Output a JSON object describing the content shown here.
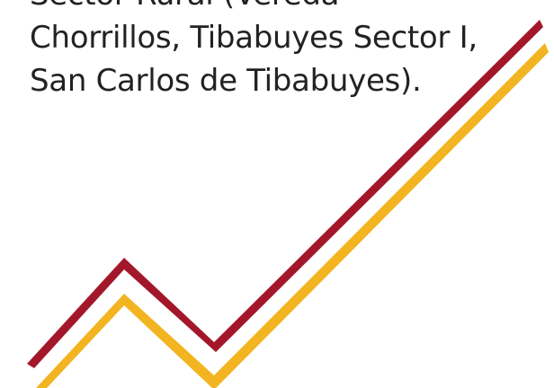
{
  "slide": {
    "lines": [
      "Sector Rural (Vereda",
      "Chorrillos, Tibabuyes Sector I,",
      "San Carlos de Tibabuyes)."
    ]
  },
  "decoration": {
    "red_color": "#a3172b",
    "gold_color": "#f2b420",
    "description_icon": "rising-chevron-swoosh"
  }
}
